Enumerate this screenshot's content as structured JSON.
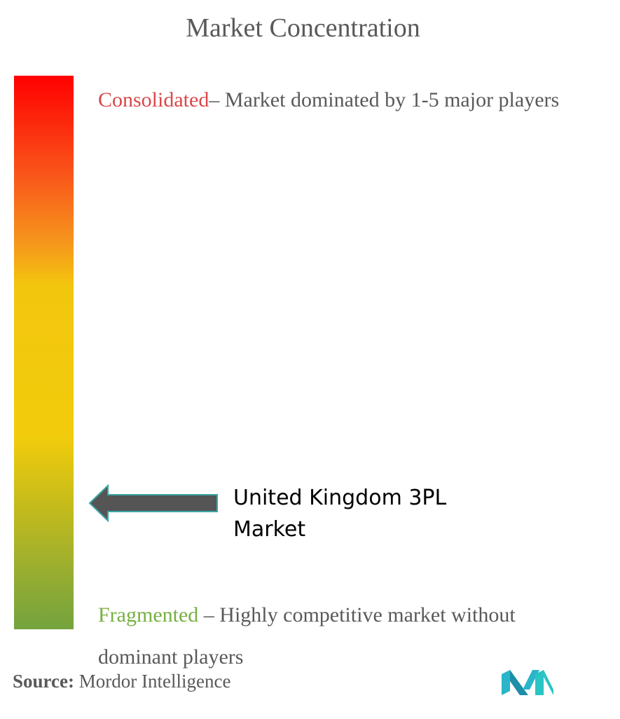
{
  "header": {
    "title": "Market Concentration"
  },
  "scale": {
    "top": {
      "label": "Consolidated",
      "description": "– Market dominated by 1-5 major players"
    },
    "bottom": {
      "label": "Fragmented",
      "description": " – Highly competitive market without dominant players"
    }
  },
  "marker": {
    "label": "United Kingdom 3PL Market"
  },
  "footer": {
    "source_label": "Source:",
    "source": "Mordor Intelligence"
  }
}
